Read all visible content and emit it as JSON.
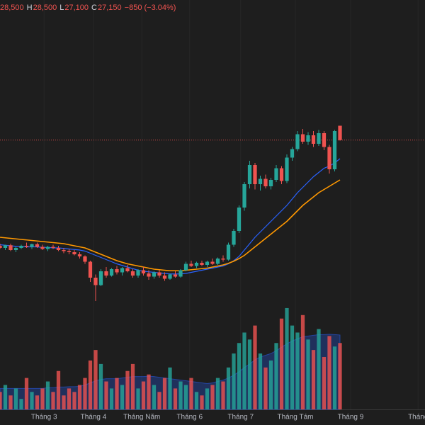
{
  "chart_data": {
    "type": "candlestick",
    "header": [
      "28,500",
      "H",
      "28,500",
      "L",
      "27,100",
      "C",
      "27,150",
      "−850 (−3.04%)"
    ],
    "header_color": "#ef5350",
    "up_color": "#26a69a",
    "down_color": "#ef5350",
    "xlim": [
      0,
      80
    ],
    "xticks": [
      {
        "value": 8.3,
        "label": "Tháng 3"
      },
      {
        "value": 17.6,
        "label": "Tháng 4"
      },
      {
        "value": 26.7,
        "label": "Tháng Năm"
      },
      {
        "value": 35.7,
        "label": "Tháng 6"
      },
      {
        "value": 45.3,
        "label": "Tháng 7"
      },
      {
        "value": 55.6,
        "label": "Tháng Tám"
      },
      {
        "value": 66,
        "label": "Tháng 9"
      },
      {
        "value": 78.7,
        "label": "Tháng"
      }
    ],
    "ylim": [
      11000,
      39000
    ],
    "vlim": [
      0,
      3000
    ],
    "open": [
      17200,
      17000,
      17250,
      16800,
      17000,
      17200,
      17100,
      17350,
      17100,
      16900,
      17100,
      17000,
      16800,
      16700,
      16600,
      16400,
      16200,
      15700,
      14200,
      13500,
      14800,
      14400,
      15000,
      14700,
      15100,
      14800,
      14400,
      14900,
      14600,
      14300,
      14700,
      14400,
      14100,
      14500,
      14300,
      14900,
      15500,
      15300,
      15600,
      15400,
      15700,
      15500,
      16000,
      15900,
      17300,
      18600,
      20800,
      23000,
      24800,
      23000,
      23500,
      22800,
      23400,
      24500,
      23300,
      25500,
      26300,
      27700,
      27000,
      27600,
      26800,
      27800,
      26500,
      24400,
      28500
    ],
    "high": [
      17400,
      17300,
      17400,
      17100,
      17300,
      17500,
      17400,
      17500,
      17300,
      17200,
      17300,
      17200,
      17000,
      16900,
      16800,
      16600,
      16300,
      15800,
      14500,
      15000,
      15200,
      15100,
      15300,
      15200,
      15400,
      15000,
      15000,
      15200,
      14900,
      14800,
      14900,
      14700,
      14600,
      14800,
      15000,
      15700,
      15800,
      15700,
      15800,
      15800,
      16000,
      16100,
      16300,
      17500,
      18800,
      21000,
      23200,
      25200,
      25000,
      23800,
      23900,
      23600,
      24800,
      24700,
      25800,
      26500,
      28000,
      28200,
      27900,
      28000,
      28100,
      28000,
      26700,
      28100,
      28500
    ],
    "low": [
      16900,
      16800,
      16700,
      16600,
      16900,
      17000,
      16900,
      17000,
      16800,
      16700,
      16900,
      16700,
      16500,
      16400,
      16300,
      16000,
      15500,
      13800,
      12000,
      13400,
      14200,
      14300,
      14500,
      14400,
      14700,
      14200,
      14200,
      14400,
      14000,
      14100,
      14200,
      13900,
      14000,
      14200,
      14200,
      14800,
      15200,
      15100,
      15300,
      15200,
      15400,
      15400,
      15700,
      15800,
      17100,
      18400,
      20500,
      22600,
      22500,
      22400,
      22600,
      22500,
      23200,
      23000,
      23100,
      25200,
      26100,
      26800,
      26700,
      26500,
      26600,
      26200,
      24000,
      24200,
      27100
    ],
    "close": [
      17000,
      17250,
      16800,
      17000,
      17200,
      17100,
      17350,
      17100,
      16900,
      17100,
      17000,
      16800,
      16700,
      16600,
      16400,
      16200,
      15700,
      14200,
      13500,
      14800,
      14400,
      15000,
      14700,
      15100,
      14800,
      14400,
      14900,
      14600,
      14300,
      14700,
      14400,
      14100,
      14500,
      14300,
      14900,
      15500,
      15300,
      15600,
      15400,
      15700,
      15500,
      16000,
      15900,
      17300,
      18600,
      20800,
      23000,
      24800,
      23000,
      23500,
      22800,
      23400,
      24500,
      23300,
      25500,
      26300,
      27700,
      27000,
      27600,
      26800,
      27800,
      26500,
      24400,
      28000,
      27150
    ],
    "ma": [
      {
        "color": "#2962ff",
        "values": [
          17300,
          17250,
          17200,
          17150,
          17150,
          17100,
          17100,
          17100,
          17050,
          17050,
          17000,
          17000,
          16950,
          16900,
          16850,
          16800,
          16700,
          16500,
          16300,
          16100,
          15900,
          15700,
          15500,
          15350,
          15200,
          15050,
          14900,
          14800,
          14750,
          14700,
          14650,
          14600,
          14550,
          14550,
          14550,
          14600,
          14700,
          14800,
          14900,
          15000,
          15100,
          15200,
          15300,
          15500,
          15800,
          16200,
          16800,
          17400,
          18000,
          18500,
          19000,
          19500,
          20000,
          20500,
          21000,
          21600,
          22200,
          22700,
          23200,
          23700,
          24100,
          24500,
          24700,
          25000,
          25400
        ]
      },
      {
        "color": "#ff9800",
        "values": [
          18000,
          17950,
          17900,
          17850,
          17800,
          17750,
          17700,
          17650,
          17600,
          17550,
          17500,
          17450,
          17400,
          17300,
          17200,
          17100,
          17000,
          16800,
          16600,
          16400,
          16200,
          16000,
          15800,
          15650,
          15500,
          15400,
          15300,
          15200,
          15100,
          15000,
          14950,
          14900,
          14850,
          14850,
          14850,
          14900,
          14950,
          15000,
          15050,
          15100,
          15200,
          15300,
          15400,
          15550,
          15750,
          16000,
          16300,
          16700,
          17100,
          17500,
          17900,
          18300,
          18700,
          19100,
          19500,
          20000,
          20500,
          21000,
          21400,
          21800,
          22200,
          22500,
          22800,
          23100,
          23400
        ]
      }
    ],
    "volume": [
      500,
      700,
      400,
      600,
      300,
      900,
      500,
      400,
      600,
      800,
      500,
      1100,
      400,
      600,
      500,
      700,
      900,
      1400,
      1700,
      1300,
      800,
      600,
      900,
      700,
      1100,
      1300,
      600,
      800,
      1000,
      700,
      500,
      900,
      1200,
      600,
      800,
      700,
      900,
      500,
      400,
      600,
      700,
      900,
      800,
      1200,
      1600,
      1900,
      2200,
      2000,
      2400,
      1600,
      1200,
      1400,
      1900,
      2600,
      2900,
      2400,
      2200,
      2700,
      2000,
      1700,
      2300,
      1500,
      2100,
      1800,
      1900
    ],
    "volume_ma": [
      600,
      600,
      600,
      600,
      600,
      600,
      600,
      600,
      600,
      620,
      620,
      640,
      640,
      650,
      650,
      660,
      700,
      760,
      820,
      860,
      880,
      880,
      880,
      900,
      920,
      940,
      940,
      940,
      950,
      940,
      920,
      900,
      880,
      860,
      840,
      820,
      800,
      780,
      760,
      740,
      760,
      800,
      840,
      900,
      980,
      1080,
      1200,
      1300,
      1420,
      1500,
      1550,
      1600,
      1680,
      1780,
      1880,
      1960,
      2020,
      2080,
      2100,
      2120,
      2140,
      2140,
      2150,
      2140,
      2130
    ],
    "volume_ma_color": "#2962ff"
  }
}
